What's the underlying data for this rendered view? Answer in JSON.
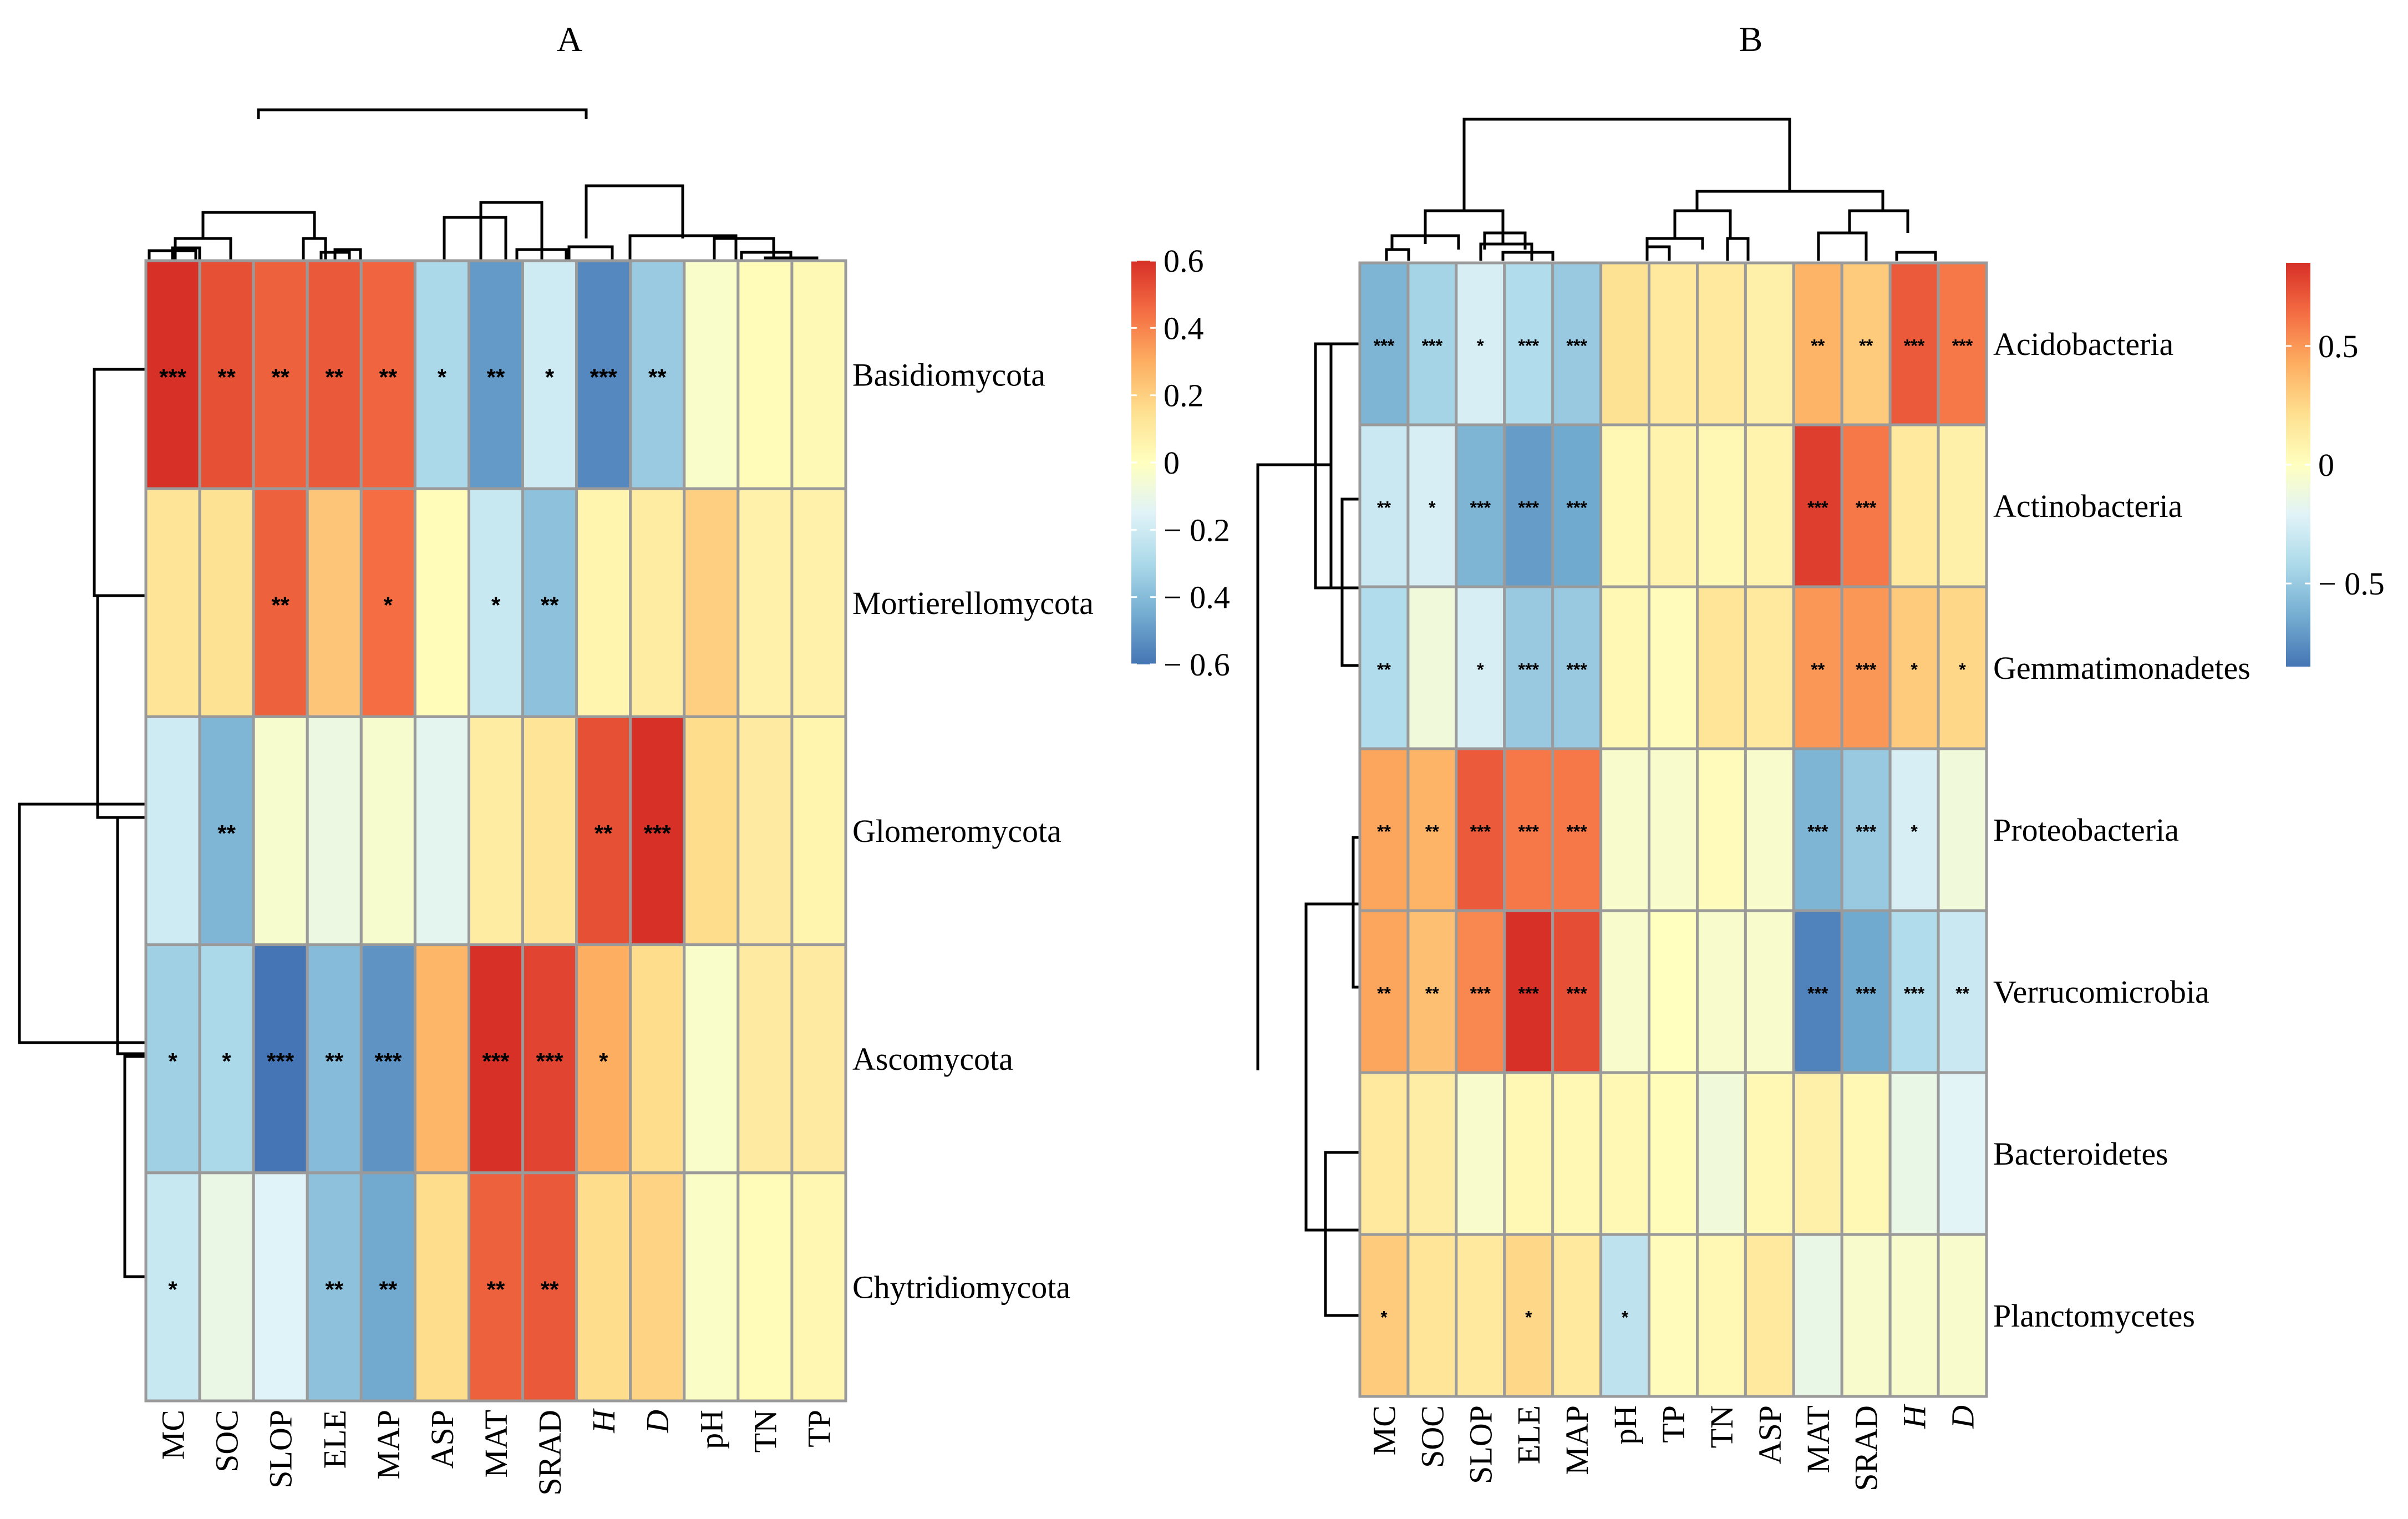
{
  "colors": {
    "scale": [
      "#4575b4",
      "#74add1",
      "#abd9e9",
      "#e0f3f8",
      "#ffffbf",
      "#fee090",
      "#fdae61",
      "#f46d43",
      "#d73027"
    ],
    "cell_border": "#9a9a9a",
    "dendrogram": "#000000"
  },
  "chart_data": [
    {
      "type": "heatmap",
      "title": "A",
      "rows": [
        "Basidiomycota",
        "Mortierellomycota",
        "Glomeromycota",
        "Ascomycota",
        "Chytridiomycota"
      ],
      "columns": [
        "MC",
        "SOC",
        "SLOP",
        "ELE",
        "MAP",
        "ASP",
        "MAT",
        "SRAD",
        "H",
        "D",
        "pH",
        "TN",
        "TP"
      ],
      "italic_columns": [
        "H",
        "D"
      ],
      "values": [
        [
          0.6,
          0.52,
          0.48,
          0.5,
          0.47,
          -0.3,
          -0.5,
          -0.2,
          -0.55,
          -0.35,
          -0.03,
          0.02,
          0.03
        ],
        [
          0.13,
          0.14,
          0.48,
          0.23,
          0.45,
          0.02,
          -0.22,
          -0.38,
          0.05,
          0.09,
          0.2,
          0.07,
          0.07
        ],
        [
          -0.2,
          -0.42,
          -0.04,
          -0.09,
          -0.04,
          -0.13,
          0.09,
          0.13,
          0.52,
          0.6,
          0.16,
          0.1,
          0.05
        ],
        [
          -0.33,
          -0.3,
          -0.6,
          -0.4,
          -0.52,
          0.28,
          0.6,
          0.55,
          0.3,
          0.16,
          -0.03,
          0.1,
          0.1
        ],
        [
          -0.22,
          -0.1,
          -0.15,
          -0.38,
          -0.46,
          0.16,
          0.48,
          0.5,
          0.16,
          0.19,
          -0.02,
          0.02,
          0.04
        ]
      ],
      "significance": [
        [
          "***",
          "**",
          "**",
          "**",
          "**",
          "*",
          "**",
          "*",
          "***",
          "**",
          "",
          "",
          ""
        ],
        [
          "",
          "",
          "**",
          "",
          "*",
          "",
          "*",
          "**",
          "",
          "",
          "",
          "",
          ""
        ],
        [
          "",
          "**",
          "",
          "",
          "",
          "",
          "",
          "",
          "**",
          "***",
          "",
          "",
          ""
        ],
        [
          "*",
          "*",
          "***",
          "**",
          "***",
          "",
          "***",
          "***",
          "*",
          "",
          "",
          "",
          ""
        ],
        [
          "*",
          "",
          "",
          "**",
          "**",
          "",
          "**",
          "**",
          "",
          "",
          "",
          "",
          ""
        ]
      ],
      "color_range": [
        -0.6,
        0.6
      ],
      "legend_ticks": [
        "0.6",
        "0.4",
        "0.2",
        "0",
        "− 0.2",
        "− 0.4",
        "− 0.6"
      ],
      "legend_tick_values": [
        0.6,
        0.4,
        0.2,
        0,
        -0.2,
        -0.4,
        -0.6
      ]
    },
    {
      "type": "heatmap",
      "title": "B",
      "rows": [
        "Acidobacteria",
        "Actinobacteria",
        "Gemmatimonadetes",
        "Proteobacteria",
        "Verrucomicrobia",
        "Bacteroidetes",
        "Planctomycetes"
      ],
      "columns": [
        "MC",
        "SOC",
        "SLOP",
        "ELE",
        "MAP",
        "pH",
        "TP",
        "TN",
        "ASP",
        "MAT",
        "SRAD",
        "H",
        "D"
      ],
      "italic_columns": [
        "H",
        "D"
      ],
      "values": [
        [
          -0.6,
          -0.45,
          -0.25,
          -0.4,
          -0.5,
          0.2,
          0.15,
          0.15,
          0.1,
          0.4,
          0.3,
          0.7,
          0.6
        ],
        [
          -0.3,
          -0.25,
          -0.6,
          -0.7,
          -0.65,
          0.05,
          0.08,
          0.05,
          0.08,
          0.8,
          0.6,
          0.15,
          0.1
        ],
        [
          -0.4,
          -0.1,
          -0.25,
          -0.5,
          -0.5,
          0.05,
          0.02,
          0.18,
          0.15,
          0.5,
          0.5,
          0.3,
          0.25
        ],
        [
          0.45,
          0.4,
          0.7,
          0.6,
          0.6,
          -0.05,
          -0.05,
          0.02,
          -0.05,
          -0.6,
          -0.5,
          -0.25,
          -0.1
        ],
        [
          0.45,
          0.35,
          0.55,
          0.85,
          0.75,
          -0.05,
          0.0,
          -0.05,
          -0.05,
          -0.8,
          -0.65,
          -0.4,
          -0.3
        ],
        [
          0.15,
          0.12,
          -0.05,
          0.05,
          0.05,
          0.05,
          0.03,
          -0.1,
          0.05,
          0.1,
          0.05,
          -0.15,
          -0.2
        ],
        [
          0.3,
          0.18,
          0.15,
          0.25,
          0.15,
          -0.35,
          0.02,
          0.05,
          0.15,
          -0.15,
          -0.05,
          -0.05,
          -0.05
        ]
      ],
      "significance": [
        [
          "***",
          "***",
          "*",
          "***",
          "***",
          "",
          "",
          "",
          "",
          "**",
          "**",
          "***",
          "***"
        ],
        [
          "**",
          "*",
          "***",
          "***",
          "***",
          "",
          "",
          "",
          "",
          "***",
          "***",
          "",
          ""
        ],
        [
          "**",
          "",
          "*",
          "***",
          "***",
          "",
          "",
          "",
          "",
          "**",
          "***",
          "*",
          "*"
        ],
        [
          "**",
          "**",
          "***",
          "***",
          "***",
          "",
          "",
          "",
          "",
          "***",
          "***",
          "*",
          ""
        ],
        [
          "**",
          "**",
          "***",
          "***",
          "***",
          "",
          "",
          "",
          "",
          "***",
          "***",
          "***",
          "**"
        ],
        [
          "",
          "",
          "",
          "",
          "",
          "",
          "",
          "",
          "",
          "",
          "",
          "",
          ""
        ],
        [
          "*",
          "",
          "",
          "*",
          "",
          "*",
          "",
          "",
          "",
          "",
          "",
          "",
          ""
        ]
      ],
      "color_range": [
        -0.85,
        0.85
      ],
      "legend_ticks": [
        "0.5",
        "0",
        "− 0.5"
      ],
      "legend_tick_values": [
        0.5,
        0,
        -0.5
      ]
    }
  ]
}
